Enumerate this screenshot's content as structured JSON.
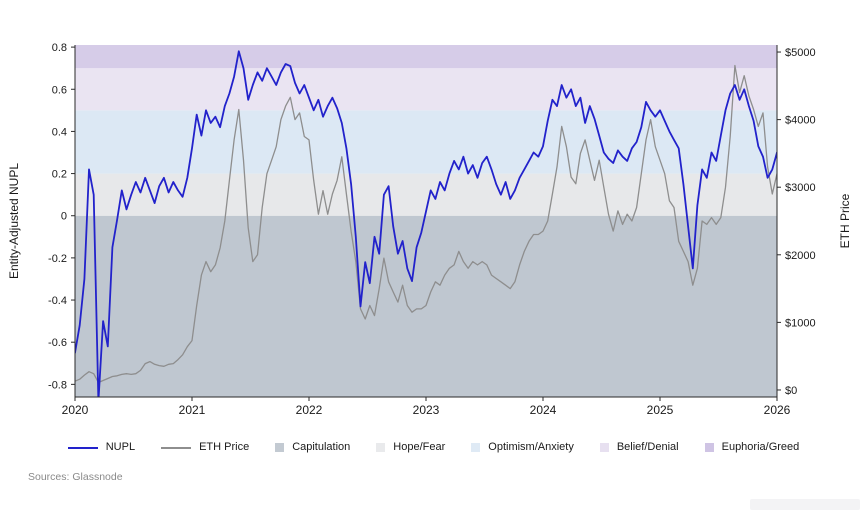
{
  "source_note": "Sources: Glassnode",
  "colors": {
    "nupl_line": "#2222cb",
    "eth_line": "#8e8e8e",
    "band_capitulation": "#bfc7d0",
    "band_hope_fear": "#e7e8ea",
    "band_optimism_anxiety": "#dce8f4",
    "band_belief_denial": "#eae4f2",
    "band_euphoria_greed": "#d6cce8",
    "axis_text": "#1a1a1a",
    "spine": "#2a2a2a",
    "source_text": "#8a8a8a"
  },
  "chart_data": {
    "type": "line",
    "title": "",
    "left_axis": {
      "label": "Entity-Adjusted NUPL",
      "range": [
        -0.86,
        0.81
      ],
      "tick_values": [
        0.8,
        0.6,
        0.4,
        0.2,
        0,
        -0.2,
        -0.4,
        -0.6,
        -0.8
      ],
      "tick_labels": [
        "0.8",
        "0.6",
        "0.4",
        "0.2",
        "0",
        "-0.2",
        "-0.4",
        "-0.6",
        "-0.8"
      ]
    },
    "right_axis": {
      "label": "ETH Price",
      "range": [
        -104,
        5104
      ],
      "tick_values": [
        5000,
        4000,
        3000,
        2000,
        1000,
        0
      ],
      "tick_labels": [
        "$5000",
        "$4000",
        "$3000",
        "$2000",
        "$1000",
        "$0"
      ]
    },
    "x_axis": {
      "range": [
        2020,
        2026
      ],
      "tick_values": [
        2020,
        2021,
        2022,
        2023,
        2024,
        2025,
        2026
      ],
      "tick_labels": [
        "2020",
        "2021",
        "2022",
        "2023",
        "2024",
        "2025",
        "2026"
      ]
    },
    "bands": [
      {
        "label": "Capitulation",
        "from": -0.86,
        "to": 0,
        "color": "#bfc7d0"
      },
      {
        "label": "Hope/Fear",
        "from": 0,
        "to": 0.2,
        "color": "#e7e8ea"
      },
      {
        "label": "Optimism/Anxiety",
        "from": 0.2,
        "to": 0.5,
        "color": "#dce8f4"
      },
      {
        "label": "Belief/Denial",
        "from": 0.5,
        "to": 0.7,
        "color": "#eae4f2"
      },
      {
        "label": "Euphoria/Greed",
        "from": 0.7,
        "to": 0.81,
        "color": "#d6cce8"
      }
    ],
    "x_start": 2020,
    "x_step": 0.04,
    "series": [
      {
        "name": "ETH Price",
        "axis": "right",
        "color": "#8e8e8e",
        "width": 1.3,
        "values": [
          130,
          160,
          220,
          270,
          240,
          110,
          140,
          170,
          200,
          210,
          230,
          240,
          230,
          240,
          290,
          390,
          420,
          380,
          360,
          350,
          380,
          390,
          450,
          520,
          640,
          730,
          1250,
          1700,
          1900,
          1750,
          1850,
          2100,
          2500,
          3100,
          3700,
          4150,
          3400,
          2400,
          1900,
          2000,
          2700,
          3200,
          3400,
          3600,
          4000,
          4200,
          4330,
          4000,
          4100,
          3750,
          3700,
          3100,
          2600,
          2950,
          2600,
          2900,
          3100,
          3450,
          2900,
          2350,
          1900,
          1200,
          1050,
          1250,
          1100,
          1500,
          1950,
          1600,
          1450,
          1300,
          1550,
          1250,
          1150,
          1200,
          1200,
          1250,
          1450,
          1600,
          1550,
          1700,
          1800,
          1850,
          2050,
          1900,
          1800,
          1900,
          1850,
          1900,
          1850,
          1700,
          1650,
          1600,
          1550,
          1500,
          1600,
          1850,
          2050,
          2200,
          2300,
          2300,
          2350,
          2500,
          2900,
          3300,
          3900,
          3600,
          3150,
          3050,
          3500,
          3700,
          3400,
          3100,
          3400,
          3000,
          2600,
          2350,
          2650,
          2450,
          2600,
          2500,
          2700,
          3200,
          3700,
          4000,
          3600,
          3400,
          3200,
          2800,
          2700,
          2200,
          2050,
          1900,
          1550,
          1800,
          2500,
          2450,
          2550,
          2450,
          2550,
          3000,
          3750,
          4800,
          4400,
          4650,
          4350,
          4150,
          3900,
          4100,
          3300,
          2900,
          3200
        ]
      },
      {
        "name": "NUPL",
        "axis": "left",
        "color": "#2222cb",
        "width": 1.8,
        "values": [
          -0.65,
          -0.52,
          -0.3,
          0.22,
          0.1,
          -0.88,
          -0.5,
          -0.62,
          -0.15,
          -0.02,
          0.12,
          0.03,
          0.1,
          0.16,
          0.11,
          0.18,
          0.12,
          0.06,
          0.14,
          0.18,
          0.11,
          0.16,
          0.12,
          0.09,
          0.18,
          0.32,
          0.48,
          0.38,
          0.5,
          0.44,
          0.47,
          0.42,
          0.52,
          0.58,
          0.66,
          0.78,
          0.7,
          0.55,
          0.62,
          0.68,
          0.64,
          0.7,
          0.66,
          0.62,
          0.68,
          0.72,
          0.71,
          0.63,
          0.58,
          0.62,
          0.56,
          0.5,
          0.55,
          0.47,
          0.52,
          0.56,
          0.51,
          0.44,
          0.32,
          0.15,
          -0.1,
          -0.43,
          -0.22,
          -0.32,
          -0.1,
          -0.18,
          0.1,
          0.14,
          -0.05,
          -0.18,
          -0.12,
          -0.25,
          -0.31,
          -0.15,
          -0.08,
          0.02,
          0.12,
          0.08,
          0.16,
          0.12,
          0.2,
          0.26,
          0.22,
          0.28,
          0.2,
          0.24,
          0.18,
          0.25,
          0.28,
          0.22,
          0.15,
          0.1,
          0.16,
          0.08,
          0.12,
          0.18,
          0.22,
          0.26,
          0.3,
          0.28,
          0.33,
          0.45,
          0.55,
          0.52,
          0.62,
          0.56,
          0.6,
          0.52,
          0.56,
          0.44,
          0.52,
          0.46,
          0.38,
          0.3,
          0.27,
          0.25,
          0.31,
          0.28,
          0.26,
          0.32,
          0.35,
          0.42,
          0.54,
          0.5,
          0.47,
          0.5,
          0.45,
          0.4,
          0.36,
          0.32,
          0.15,
          -0.05,
          -0.25,
          0.05,
          0.22,
          0.18,
          0.3,
          0.26,
          0.38,
          0.5,
          0.58,
          0.62,
          0.55,
          0.6,
          0.52,
          0.45,
          0.33,
          0.28,
          0.18,
          0.22,
          0.3
        ]
      }
    ],
    "legend": [
      {
        "label": "NUPL",
        "swatch": "line",
        "color": "#2222cb"
      },
      {
        "label": "ETH Price",
        "swatch": "line",
        "color": "#8e8e8e"
      },
      {
        "label": "Capitulation",
        "swatch": "square",
        "color": "#c3cad2"
      },
      {
        "label": "Hope/Fear",
        "swatch": "square",
        "color": "#e9eaec"
      },
      {
        "label": "Optimism/Anxiety",
        "swatch": "square",
        "color": "#dfeaf5"
      },
      {
        "label": "Belief/Denial",
        "swatch": "square",
        "color": "#e7e0f0"
      },
      {
        "label": "Euphoria/Greed",
        "swatch": "square",
        "color": "#cfc4e4"
      }
    ],
    "legend_position": "bottom",
    "grid": false
  }
}
